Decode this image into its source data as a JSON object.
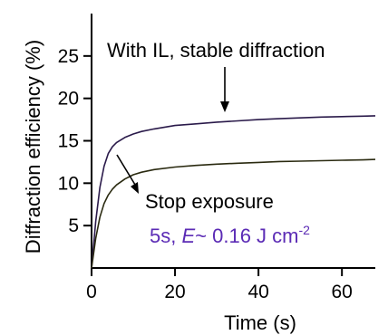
{
  "chart_data": {
    "type": "line",
    "title": "",
    "xlabel": "Time (s)",
    "ylabel": "Diffraction efficiency (%)",
    "xlim": [
      0,
      68
    ],
    "ylim": [
      0,
      30
    ],
    "xticks": [
      0,
      20,
      40,
      60
    ],
    "yticks": [
      5,
      10,
      15,
      20,
      25
    ],
    "xtick_labels": [
      "0",
      "20",
      "40",
      "60"
    ],
    "ytick_labels": [
      "5",
      "10",
      "15",
      "20",
      "25"
    ],
    "grid": false,
    "series": [
      {
        "color": "#2a1a4a",
        "x": [
          0,
          1,
          2,
          3,
          4,
          5,
          6,
          8,
          10,
          12,
          15,
          20,
          25,
          30,
          35,
          40,
          45,
          50,
          55,
          60,
          65,
          68
        ],
        "y": [
          0,
          5.5,
          9.5,
          12.0,
          13.5,
          14.3,
          14.8,
          15.4,
          15.8,
          16.1,
          16.4,
          16.8,
          17.0,
          17.2,
          17.35,
          17.5,
          17.6,
          17.7,
          17.8,
          17.85,
          17.9,
          17.95
        ]
      },
      {
        "color": "#2a2a10",
        "x": [
          0,
          1,
          2,
          3,
          4,
          5,
          6,
          8,
          10,
          12,
          15,
          20,
          25,
          30,
          35,
          40,
          45,
          50,
          55,
          60,
          65,
          68
        ],
        "y": [
          0,
          3.5,
          6.0,
          7.6,
          8.6,
          9.3,
          9.8,
          10.5,
          11.0,
          11.3,
          11.6,
          11.9,
          12.1,
          12.25,
          12.35,
          12.45,
          12.55,
          12.6,
          12.65,
          12.7,
          12.75,
          12.8
        ]
      }
    ],
    "annotations": {
      "stable": "With IL, stable diffraction",
      "stop": "Stop exposure",
      "energy_prefix": "5s, ",
      "energy_symbol": "E",
      "energy_value": "~ 0.16 J cm",
      "energy_sup": "-2"
    }
  }
}
